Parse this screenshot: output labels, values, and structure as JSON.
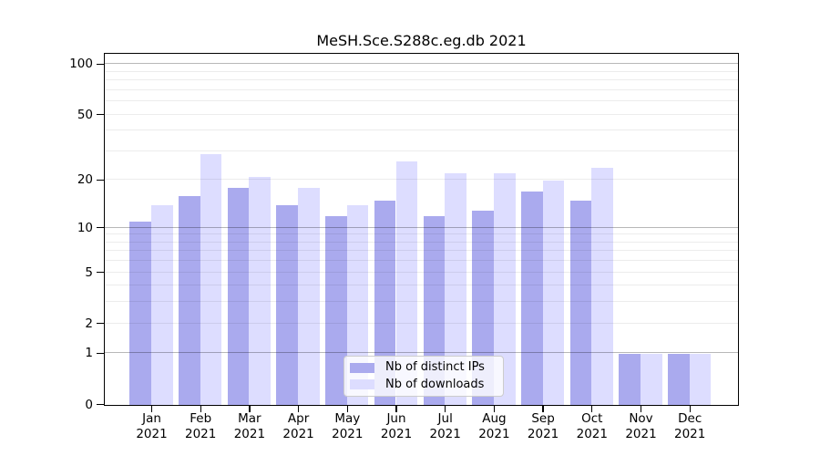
{
  "chart_data": {
    "type": "bar",
    "title": "MeSH.Sce.S288c.eg.db 2021",
    "categories": [
      {
        "month": "Jan",
        "year": "2021"
      },
      {
        "month": "Feb",
        "year": "2021"
      },
      {
        "month": "Mar",
        "year": "2021"
      },
      {
        "month": "Apr",
        "year": "2021"
      },
      {
        "month": "May",
        "year": "2021"
      },
      {
        "month": "Jun",
        "year": "2021"
      },
      {
        "month": "Jul",
        "year": "2021"
      },
      {
        "month": "Aug",
        "year": "2021"
      },
      {
        "month": "Sep",
        "year": "2021"
      },
      {
        "month": "Oct",
        "year": "2021"
      },
      {
        "month": "Nov",
        "year": "2021"
      },
      {
        "month": "Dec",
        "year": "2021"
      }
    ],
    "series": [
      {
        "name": "Nb of distinct IPs",
        "color": "#aaaaee",
        "values": [
          11,
          16,
          18,
          14,
          12,
          15,
          12,
          13,
          17,
          15,
          1,
          1
        ]
      },
      {
        "name": "Nb of downloads",
        "color": "#ddddff",
        "values": [
          14,
          29,
          21,
          18,
          14,
          26,
          22,
          22,
          20,
          24,
          1,
          1
        ]
      }
    ],
    "y_axis": {
      "scale": "log1p",
      "range": [
        0,
        100
      ],
      "tick_labels": [
        0,
        1,
        2,
        5,
        10,
        20,
        50,
        100
      ],
      "major_gridlines": [
        1,
        10,
        100
      ],
      "minor_gridlines": [
        2,
        3,
        4,
        5,
        6,
        7,
        8,
        9,
        20,
        30,
        40,
        50,
        60,
        70,
        80,
        90
      ]
    },
    "legend": {
      "position": "lower center",
      "items": [
        {
          "label": "Nb of distinct IPs",
          "color": "#aaaaee"
        },
        {
          "label": "Nb of downloads",
          "color": "#ddddff"
        }
      ]
    },
    "colors": {
      "bar_distinct_ips": "#aaaaee",
      "bar_downloads": "#ddddff",
      "grid_major": "#b8b8b8",
      "grid_minor": "#ebebeb",
      "axis": "#000000",
      "legend_border": "#cccccc",
      "background": "#ffffff"
    }
  }
}
